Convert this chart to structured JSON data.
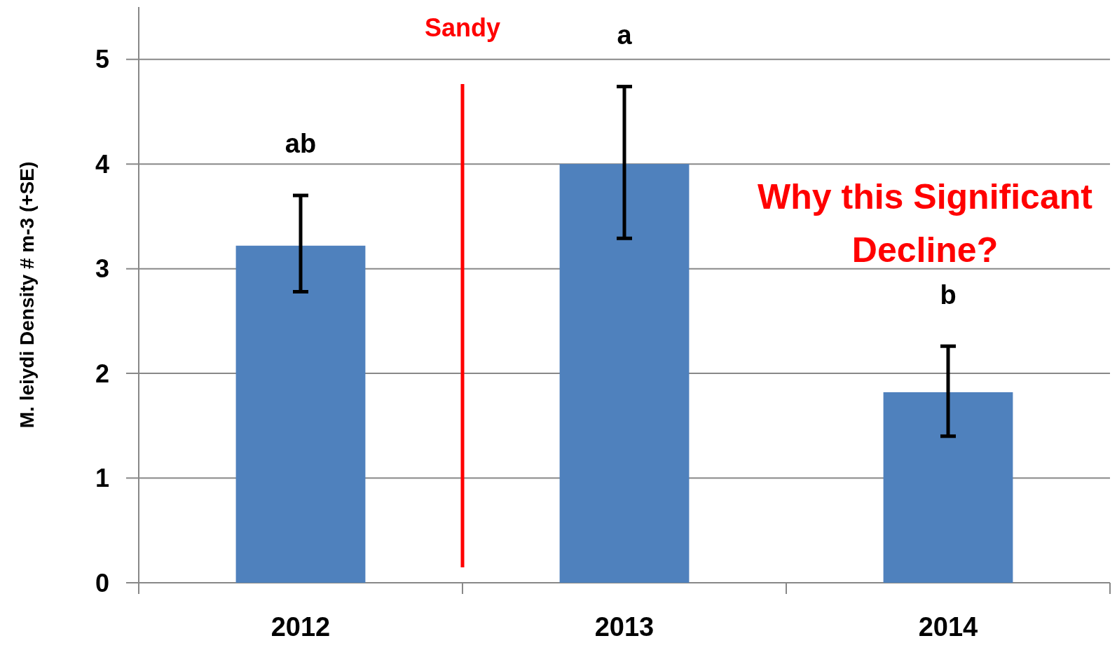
{
  "chart_data": {
    "type": "bar",
    "ylabel": "M. leiydi Density # m-3 (+SE)",
    "categories": [
      "2012",
      "2013",
      "2014"
    ],
    "values": [
      3.22,
      4.0,
      1.82
    ],
    "color": "#4f81bd",
    "errors": [
      [
        2.78,
        3.7
      ],
      [
        3.29,
        4.74
      ],
      [
        1.4,
        2.26
      ]
    ],
    "ylim": [
      0,
      5.5
    ],
    "yticks": [
      0,
      1,
      2,
      3,
      4,
      5
    ],
    "grid": "y",
    "annotations": [
      "ab",
      "a",
      "b",
      "Sandy",
      "Why this Significant Decline?"
    ]
  }
}
